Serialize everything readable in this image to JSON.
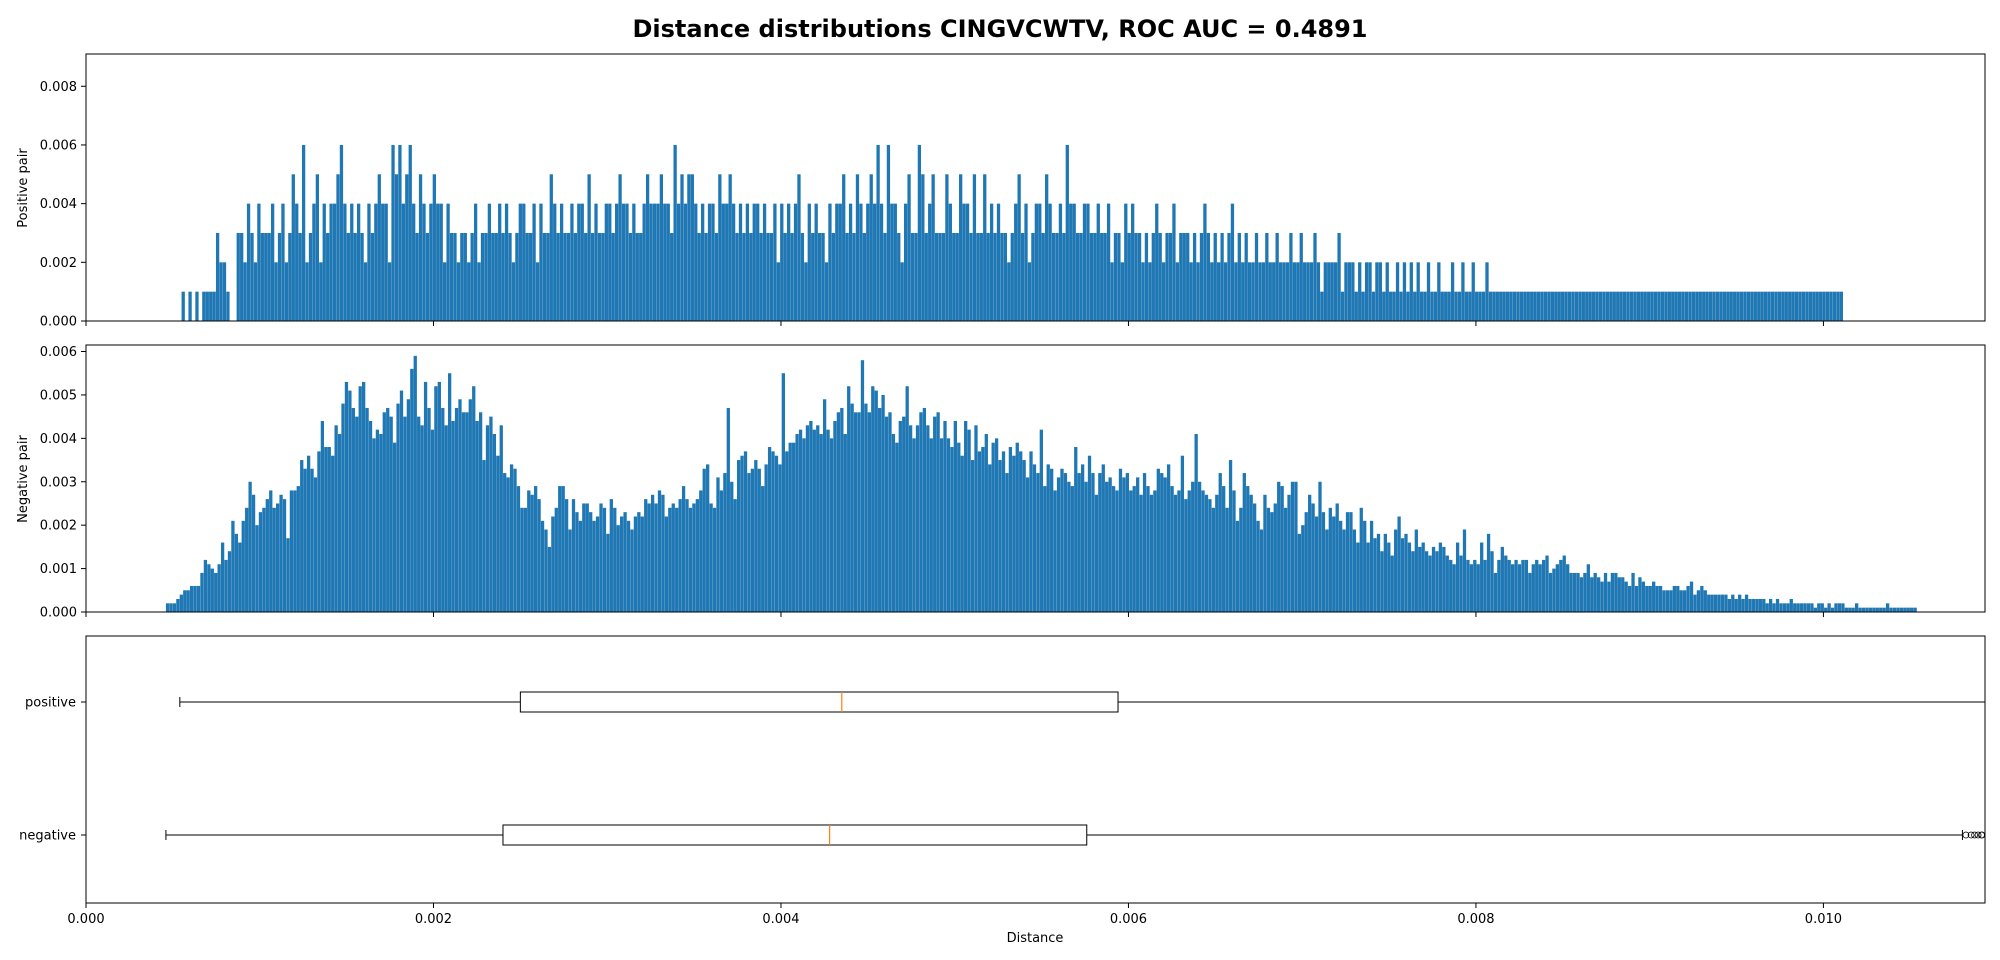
{
  "chart_data": {
    "type": "histogram+boxplot",
    "title": "Distance distributions CINGVCWTV, ROC AUC = 0.4891",
    "xlabel": "Distance",
    "xlim": [
      0.0,
      0.01093
    ],
    "x_ticks": [
      "0.000",
      "0.002",
      "0.004",
      "0.006",
      "0.008",
      "0.010"
    ],
    "x_tick_values": [
      0.0,
      0.002,
      0.004,
      0.006,
      0.008,
      0.01
    ],
    "bar_color": "#1f77b4",
    "median_color": "#ff7f0e",
    "positive_hist": {
      "ylabel": "Positive pair",
      "ylim": [
        0,
        0.0091
      ],
      "y_ticks": [
        "0.000",
        "0.002",
        "0.004",
        "0.006",
        "0.008"
      ],
      "y_tick_values": [
        0,
        0.002,
        0.004,
        0.006,
        0.008
      ],
      "bin_start": 0.00055,
      "bin_width": 1.98e-05,
      "values": [
        0.001,
        0,
        0.001,
        0,
        0.001,
        0,
        0.001,
        0.001,
        0.001,
        0.001,
        0.003,
        0.002,
        0.002,
        0.001,
        0,
        0,
        0.003,
        0.003,
        0.002,
        0.004,
        0.003,
        0.002,
        0.004,
        0.003,
        0.003,
        0.003,
        0.004,
        0.002,
        0.003,
        0.004,
        0.002,
        0.003,
        0.005,
        0.004,
        0.003,
        0.006,
        0.002,
        0.003,
        0.004,
        0.005,
        0.002,
        0.004,
        0.003,
        0.004,
        0.004,
        0.005,
        0.006,
        0.004,
        0.003,
        0.004,
        0.003,
        0.004,
        0.003,
        0.002,
        0.004,
        0.003,
        0.004,
        0.005,
        0.004,
        0.004,
        0.002,
        0.006,
        0.005,
        0.006,
        0.004,
        0.005,
        0.006,
        0.004,
        0.003,
        0.005,
        0.004,
        0.003,
        0.004,
        0.005,
        0.004,
        0.004,
        0.002,
        0.004,
        0.003,
        0.003,
        0.002,
        0.003,
        0.003,
        0.002,
        0.003,
        0.004,
        0.002,
        0.003,
        0.003,
        0.004,
        0.003,
        0.003,
        0.004,
        0.003,
        0.004,
        0.003,
        0.002,
        0.003,
        0.004,
        0.004,
        0.003,
        0.003,
        0.004,
        0.002,
        0.004,
        0.003,
        0.003,
        0.005,
        0.004,
        0.003,
        0.004,
        0.003,
        0.003,
        0.004,
        0.003,
        0.004,
        0.004,
        0.003,
        0.005,
        0.003,
        0.004,
        0.003,
        0.003,
        0.004,
        0.004,
        0.003,
        0.004,
        0.005,
        0.004,
        0.004,
        0.003,
        0.004,
        0.003,
        0.003,
        0.004,
        0.005,
        0.004,
        0.004,
        0.004,
        0.005,
        0.004,
        0.004,
        0.003,
        0.006,
        0.004,
        0.005,
        0.004,
        0.005,
        0.005,
        0.004,
        0.003,
        0.004,
        0.003,
        0.004,
        0.004,
        0.003,
        0.005,
        0.004,
        0.004,
        0.005,
        0.004,
        0.003,
        0.004,
        0.003,
        0.004,
        0.003,
        0.004,
        0.004,
        0.003,
        0.004,
        0.003,
        0.003,
        0.004,
        0.002,
        0.004,
        0.003,
        0.004,
        0.003,
        0.004,
        0.005,
        0.003,
        0.002,
        0.004,
        0.003,
        0.004,
        0.003,
        0.003,
        0.002,
        0.004,
        0.003,
        0.004,
        0.004,
        0.005,
        0.003,
        0.004,
        0.003,
        0.005,
        0.004,
        0.003,
        0.004,
        0.005,
        0.004,
        0.006,
        0.004,
        0.003,
        0.006,
        0.004,
        0.004,
        0.003,
        0.002,
        0.004,
        0.005,
        0.003,
        0.003,
        0.006,
        0.005,
        0.003,
        0.004,
        0.005,
        0.003,
        0.003,
        0.003,
        0.005,
        0.004,
        0.003,
        0.003,
        0.005,
        0.004,
        0.004,
        0.003,
        0.005,
        0.003,
        0.003,
        0.005,
        0.003,
        0.004,
        0.003,
        0.004,
        0.003,
        0.003,
        0.002,
        0.003,
        0.004,
        0.005,
        0.003,
        0.004,
        0.002,
        0.003,
        0.004,
        0.004,
        0.003,
        0.005,
        0.004,
        0.003,
        0.003,
        0.004,
        0.003,
        0.006,
        0.004,
        0.004,
        0.003,
        0.003,
        0.004,
        0.004,
        0.003,
        0.003,
        0.004,
        0.003,
        0.003,
        0.004,
        0.002,
        0.003,
        0.003,
        0.002,
        0.004,
        0.003,
        0.004,
        0.003,
        0.003,
        0.002,
        0.003,
        0.002,
        0.003,
        0.004,
        0.003,
        0.002,
        0.003,
        0.003,
        0.004,
        0.002,
        0.003,
        0.003,
        0.003,
        0.002,
        0.003,
        0.002,
        0.003,
        0.004,
        0.003,
        0.002,
        0.003,
        0.002,
        0.003,
        0.002,
        0.003,
        0.004,
        0.002,
        0.003,
        0.002,
        0.003,
        0.002,
        0.002,
        0.003,
        0.002,
        0.002,
        0.003,
        0.002,
        0.002,
        0.003,
        0.002,
        0.002,
        0.002,
        0.003,
        0.002,
        0.002,
        0.003,
        0.002,
        0.002,
        0.002,
        0.003,
        0.002,
        0.001,
        0.002,
        0.002,
        0.002,
        0.002,
        0.003,
        0.001,
        0.002,
        0.002,
        0.002,
        0.001,
        0.002,
        0.001,
        0.002,
        0.002,
        0.001,
        0.002,
        0.002,
        0.001,
        0.002,
        0.001,
        0.001,
        0.002,
        0.001,
        0.002,
        0.001,
        0.002,
        0.001,
        0.002,
        0.001,
        0.001,
        0.002,
        0.001,
        0.001,
        0.002,
        0.001,
        0.001,
        0.001,
        0.002,
        0.001,
        0.001,
        0.002,
        0.001,
        0.001,
        0.002,
        0.001,
        0.001,
        0.001,
        0.002,
        0.001,
        0.001,
        0.001,
        0.001,
        0.001,
        0.001,
        0.001,
        0.001,
        0.001,
        0.001,
        0.001,
        0.001,
        0.001,
        0.001,
        0.001,
        0.001,
        0.001,
        0.001,
        0.001,
        0.001,
        0.001,
        0.001,
        0.001,
        0.001,
        0.001,
        0.001,
        0.001,
        0.001,
        0.001,
        0.001,
        0.001,
        0.001,
        0.001,
        0.001,
        0.001,
        0.001,
        0.001,
        0.001,
        0.001,
        0.001,
        0.001,
        0.001,
        0.001,
        0.001,
        0.001,
        0.001,
        0.001,
        0.001,
        0.001,
        0.001,
        0.001,
        0.001,
        0.001,
        0.001,
        0.001,
        0.001,
        0.001,
        0.001,
        0.001,
        0.001,
        0.001,
        0.001,
        0.001,
        0.001,
        0.001,
        0.001,
        0.001,
        0.001,
        0.001,
        0.001,
        0.001,
        0.001,
        0.001,
        0.001,
        0.001,
        0.001,
        0.001,
        0.001,
        0.001,
        0.001,
        0.001,
        0.001,
        0.001,
        0.001,
        0.001,
        0.001,
        0.001,
        0.001,
        0.001,
        0.001,
        0.001,
        0.001,
        0.001,
        0.001,
        0.001,
        0.001,
        0.001,
        0.001,
        0.001,
        0.001,
        0.001,
        0.001,
        0.001
      ]
    },
    "negative_hist": {
      "ylabel": "Negative pair",
      "ylim": [
        0,
        0.00615
      ],
      "y_ticks": [
        "0.000",
        "0.001",
        "0.002",
        "0.003",
        "0.004",
        "0.005",
        "0.006"
      ],
      "y_tick_values": [
        0,
        0.001,
        0.002,
        0.003,
        0.004,
        0.005,
        0.006
      ],
      "bin_start": 0.00046,
      "bin_width": 1.98e-05,
      "values": [
        0.0002,
        0.0002,
        0.0002,
        0.0003,
        0.0004,
        0.0005,
        0.0005,
        0.0006,
        0.0006,
        0.0006,
        0.0009,
        0.0012,
        0.0011,
        0.001,
        0.0009,
        0.0011,
        0.0016,
        0.0012,
        0.0014,
        0.0021,
        0.0018,
        0.0016,
        0.0021,
        0.0024,
        0.003,
        0.0027,
        0.002,
        0.0023,
        0.0024,
        0.0026,
        0.0028,
        0.0024,
        0.0025,
        0.0027,
        0.0026,
        0.0017,
        0.0028,
        0.0028,
        0.0029,
        0.0035,
        0.0033,
        0.0036,
        0.0033,
        0.0031,
        0.0037,
        0.0044,
        0.0038,
        0.0038,
        0.0036,
        0.0043,
        0.0041,
        0.0048,
        0.0053,
        0.0051,
        0.0047,
        0.0045,
        0.0052,
        0.0053,
        0.0047,
        0.0044,
        0.004,
        0.0042,
        0.0041,
        0.0046,
        0.0047,
        0.0045,
        0.0039,
        0.0048,
        0.0051,
        0.0045,
        0.0049,
        0.0056,
        0.0059,
        0.0045,
        0.0043,
        0.0053,
        0.0047,
        0.0042,
        0.0052,
        0.0053,
        0.0047,
        0.0043,
        0.0055,
        0.0044,
        0.0047,
        0.0049,
        0.0046,
        0.0046,
        0.0049,
        0.0052,
        0.0044,
        0.0046,
        0.0035,
        0.0043,
        0.0045,
        0.0041,
        0.0036,
        0.0043,
        0.0032,
        0.0031,
        0.0034,
        0.0033,
        0.0029,
        0.0024,
        0.0024,
        0.0028,
        0.0027,
        0.0029,
        0.0026,
        0.0021,
        0.0019,
        0.0015,
        0.0022,
        0.0024,
        0.0029,
        0.0029,
        0.0026,
        0.0019,
        0.0026,
        0.0023,
        0.0021,
        0.0025,
        0.0025,
        0.0023,
        0.0021,
        0.0022,
        0.0025,
        0.0024,
        0.0018,
        0.0026,
        0.0024,
        0.002,
        0.0022,
        0.0023,
        0.0021,
        0.0019,
        0.0022,
        0.0023,
        0.0022,
        0.0026,
        0.0025,
        0.0027,
        0.0025,
        0.0028,
        0.0027,
        0.0022,
        0.0024,
        0.0025,
        0.0024,
        0.0026,
        0.0029,
        0.0026,
        0.0024,
        0.0025,
        0.0026,
        0.0028,
        0.0033,
        0.0034,
        0.0025,
        0.0024,
        0.0031,
        0.0028,
        0.0032,
        0.0047,
        0.003,
        0.0026,
        0.0035,
        0.0036,
        0.0037,
        0.0032,
        0.0033,
        0.0035,
        0.0033,
        0.0029,
        0.0034,
        0.0038,
        0.0037,
        0.0036,
        0.0034,
        0.0055,
        0.0037,
        0.0039,
        0.0039,
        0.0041,
        0.0042,
        0.004,
        0.0043,
        0.0044,
        0.0042,
        0.0043,
        0.0041,
        0.0049,
        0.0042,
        0.004,
        0.0044,
        0.0046,
        0.0047,
        0.0041,
        0.0052,
        0.0048,
        0.0046,
        0.0046,
        0.0058,
        0.0048,
        0.0046,
        0.0052,
        0.0051,
        0.0047,
        0.005,
        0.0045,
        0.0046,
        0.0041,
        0.0039,
        0.0044,
        0.0045,
        0.0052,
        0.0043,
        0.004,
        0.0043,
        0.0046,
        0.0047,
        0.0043,
        0.004,
        0.0045,
        0.0046,
        0.004,
        0.0044,
        0.004,
        0.0038,
        0.0044,
        0.0039,
        0.0036,
        0.0044,
        0.0042,
        0.0035,
        0.0043,
        0.0037,
        0.0038,
        0.0041,
        0.0034,
        0.0039,
        0.004,
        0.0035,
        0.0037,
        0.0032,
        0.0038,
        0.0036,
        0.0039,
        0.0037,
        0.0035,
        0.0031,
        0.0037,
        0.0034,
        0.0032,
        0.0042,
        0.0029,
        0.0034,
        0.0033,
        0.0028,
        0.0031,
        0.0033,
        0.0032,
        0.003,
        0.0029,
        0.0038,
        0.0032,
        0.0034,
        0.003,
        0.0036,
        0.0032,
        0.0027,
        0.0032,
        0.0034,
        0.003,
        0.0031,
        0.0029,
        0.0028,
        0.0033,
        0.0031,
        0.0032,
        0.0028,
        0.0029,
        0.0031,
        0.0027,
        0.0032,
        0.0029,
        0.0027,
        0.0028,
        0.0033,
        0.0032,
        0.0031,
        0.0034,
        0.0029,
        0.0027,
        0.0028,
        0.0036,
        0.0026,
        0.0028,
        0.003,
        0.0041,
        0.003,
        0.0028,
        0.0027,
        0.0026,
        0.0024,
        0.0027,
        0.0032,
        0.0029,
        0.0024,
        0.0035,
        0.0028,
        0.0021,
        0.0024,
        0.0032,
        0.0029,
        0.0027,
        0.0025,
        0.0021,
        0.0019,
        0.0027,
        0.0024,
        0.0023,
        0.0025,
        0.003,
        0.0029,
        0.0024,
        0.0027,
        0.003,
        0.003,
        0.0018,
        0.002,
        0.0023,
        0.0027,
        0.0025,
        0.0022,
        0.003,
        0.0023,
        0.0019,
        0.0024,
        0.0022,
        0.0025,
        0.0021,
        0.0019,
        0.0023,
        0.0023,
        0.0019,
        0.0016,
        0.0024,
        0.0021,
        0.0016,
        0.0021,
        0.0017,
        0.0018,
        0.0014,
        0.0018,
        0.0016,
        0.0013,
        0.0019,
        0.0022,
        0.0017,
        0.0018,
        0.0016,
        0.0014,
        0.0019,
        0.0015,
        0.0016,
        0.0014,
        0.0013,
        0.0015,
        0.0014,
        0.0016,
        0.0015,
        0.0013,
        0.0012,
        0.0011,
        0.0016,
        0.0013,
        0.0019,
        0.0012,
        0.0011,
        0.0012,
        0.0011,
        0.0016,
        0.0012,
        0.0018,
        0.0014,
        0.0009,
        0.0012,
        0.0015,
        0.0013,
        0.0012,
        0.0011,
        0.0012,
        0.0011,
        0.0012,
        0.0012,
        0.0009,
        0.0011,
        0.0012,
        0.0011,
        0.0012,
        0.0013,
        0.0009,
        0.001,
        0.0011,
        0.0012,
        0.0013,
        0.0011,
        0.0009,
        0.0009,
        0.0009,
        0.0008,
        0.0009,
        0.0011,
        0.0008,
        0.0009,
        0.0008,
        0.0007,
        0.0009,
        0.0007,
        0.0009,
        0.0009,
        0.0008,
        0.0008,
        0.0007,
        0.0006,
        0.0009,
        0.0006,
        0.0008,
        0.0007,
        0.0006,
        0.0006,
        0.0007,
        0.0006,
        0.0006,
        0.0005,
        0.0005,
        0.0005,
        0.0006,
        0.0006,
        0.0005,
        0.0005,
        0.0006,
        0.0007,
        0.0004,
        0.0005,
        0.0006,
        0.0005,
        0.0004,
        0.0004,
        0.0004,
        0.0004,
        0.0004,
        0.0004,
        0.0003,
        0.0004,
        0.0003,
        0.0004,
        0.0003,
        0.0004,
        0.0003,
        0.0003,
        0.0003,
        0.0003,
        0.0003,
        0.0002,
        0.0003,
        0.0002,
        0.0003,
        0.0002,
        0.0002,
        0.0002,
        0.0003,
        0.0002,
        0.0002,
        0.0002,
        0.0002,
        0.0002,
        0.0002,
        0.0001,
        0.0002,
        0.0002,
        0.0001,
        0.0002,
        0.0001,
        0.0002,
        0.0002,
        0.0002,
        0.0001,
        0.0001,
        0.0001,
        0.0002,
        0.0001,
        0.0001,
        0.0001,
        0.0001,
        0.0001,
        0.0001,
        0.0001,
        0.0001,
        0.0002,
        0.0001,
        0.0001,
        0.0001,
        0.0001,
        0.0001,
        0.0001,
        0.0001,
        0.0001
      ]
    },
    "boxplot": {
      "categories": [
        "positive",
        "negative"
      ],
      "positive": {
        "whisker_low": 0.00054,
        "q1": 0.0025,
        "median": 0.00435,
        "q3": 0.00594,
        "whisker_high": 0.01093
      },
      "negative": {
        "whisker_low": 0.00046,
        "q1": 0.0024,
        "median": 0.00428,
        "q3": 0.00576,
        "whisker_high": 0.0108,
        "outliers": [
          0.01082,
          0.01085,
          0.01087,
          0.01089,
          0.01091,
          0.01093
        ]
      }
    }
  }
}
